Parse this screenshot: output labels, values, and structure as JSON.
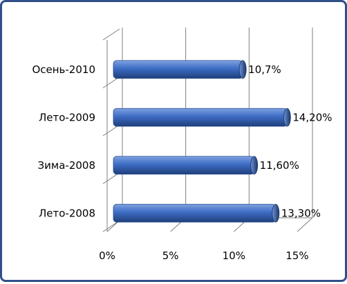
{
  "chart_data": {
    "type": "bar",
    "orientation": "horizontal",
    "categories": [
      "Осень-2010",
      "Лето-2009",
      "Зима-2008",
      "Лето-2008"
    ],
    "values": [
      10.7,
      14.2,
      11.6,
      13.3
    ],
    "value_labels": [
      "10,7%",
      "14,20%",
      "11,60%",
      "13,30%"
    ],
    "x_ticks": [
      {
        "value": 0,
        "label": "0%"
      },
      {
        "value": 5,
        "label": "5%"
      },
      {
        "value": 10,
        "label": "10%"
      },
      {
        "value": 15,
        "label": "15%"
      }
    ],
    "xlim": [
      0,
      15
    ],
    "grid": true,
    "bar_color": "#3d6cc4",
    "bar_color_dark": "#1f3f7a",
    "title": "",
    "xlabel": "",
    "ylabel": ""
  }
}
